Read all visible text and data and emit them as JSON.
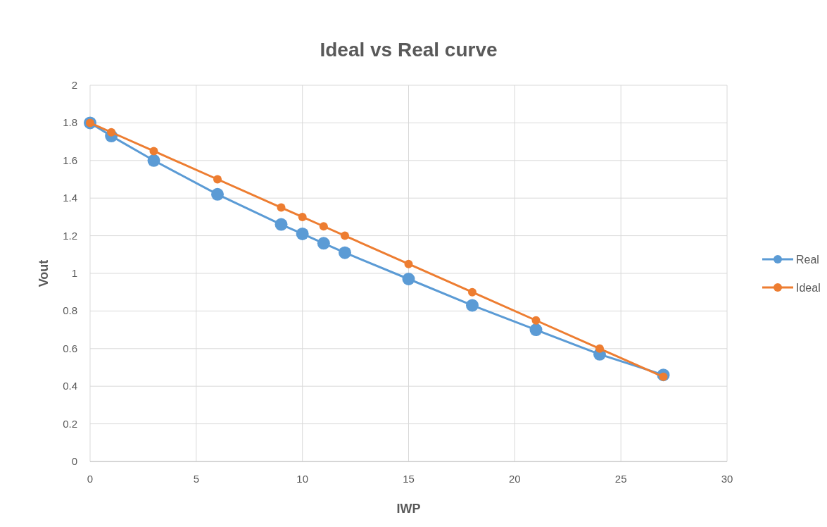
{
  "chart_data": {
    "type": "line",
    "title": "Ideal vs Real curve",
    "xlabel": "IWP",
    "ylabel": "Vout",
    "x": [
      0,
      1,
      3,
      6,
      9,
      10,
      11,
      12,
      15,
      18,
      21,
      24,
      27
    ],
    "series": [
      {
        "name": "Real",
        "color": "#5b9bd5",
        "values": [
          1.8,
          1.73,
          1.6,
          1.42,
          1.26,
          1.21,
          1.16,
          1.11,
          0.97,
          0.83,
          0.7,
          0.57,
          0.46
        ]
      },
      {
        "name": "Ideal",
        "color": "#ed7d31",
        "values": [
          1.8,
          1.75,
          1.65,
          1.5,
          1.35,
          1.3,
          1.25,
          1.2,
          1.05,
          0.9,
          0.75,
          0.6,
          0.45
        ]
      }
    ],
    "xlim": [
      0,
      30
    ],
    "xticks": [
      0,
      5,
      10,
      15,
      20,
      25,
      30
    ],
    "ylim": [
      0,
      2
    ],
    "yticks": [
      0,
      0.2,
      0.4,
      0.6,
      0.8,
      1,
      1.2,
      1.4,
      1.6,
      1.8,
      2
    ],
    "grid": true,
    "legend": "right",
    "marker": "circle",
    "line_style": "solid"
  }
}
